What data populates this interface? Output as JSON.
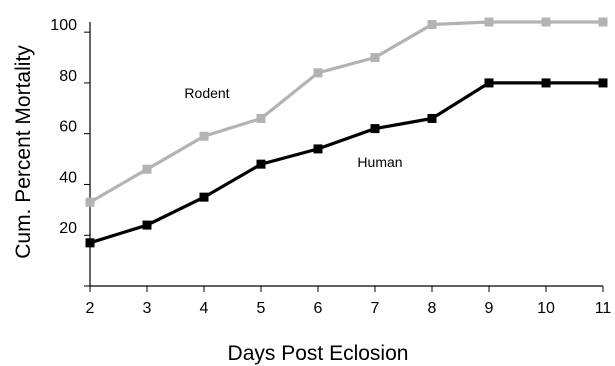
{
  "chart_data": {
    "type": "line",
    "title": "",
    "xlabel": "Days Post Eclosion",
    "ylabel": "Cum. Percent Mortality",
    "x": [
      2,
      3,
      4,
      5,
      6,
      7,
      8,
      9,
      10,
      11
    ],
    "xlim": [
      2,
      11
    ],
    "ylim": [
      0,
      100
    ],
    "yticks": [
      20,
      40,
      60,
      80,
      100
    ],
    "grid": false,
    "legend": "none",
    "series": [
      {
        "name": "Rodent",
        "color": "#b3b3b3",
        "marker": "square",
        "values": [
          33,
          46,
          59,
          66,
          84,
          90,
          103,
          104,
          104,
          104
        ]
      },
      {
        "name": "Human",
        "color": "#000000",
        "marker": "square",
        "values": [
          17,
          24,
          35,
          48,
          54,
          62,
          66,
          80,
          80,
          80
        ]
      }
    ]
  }
}
